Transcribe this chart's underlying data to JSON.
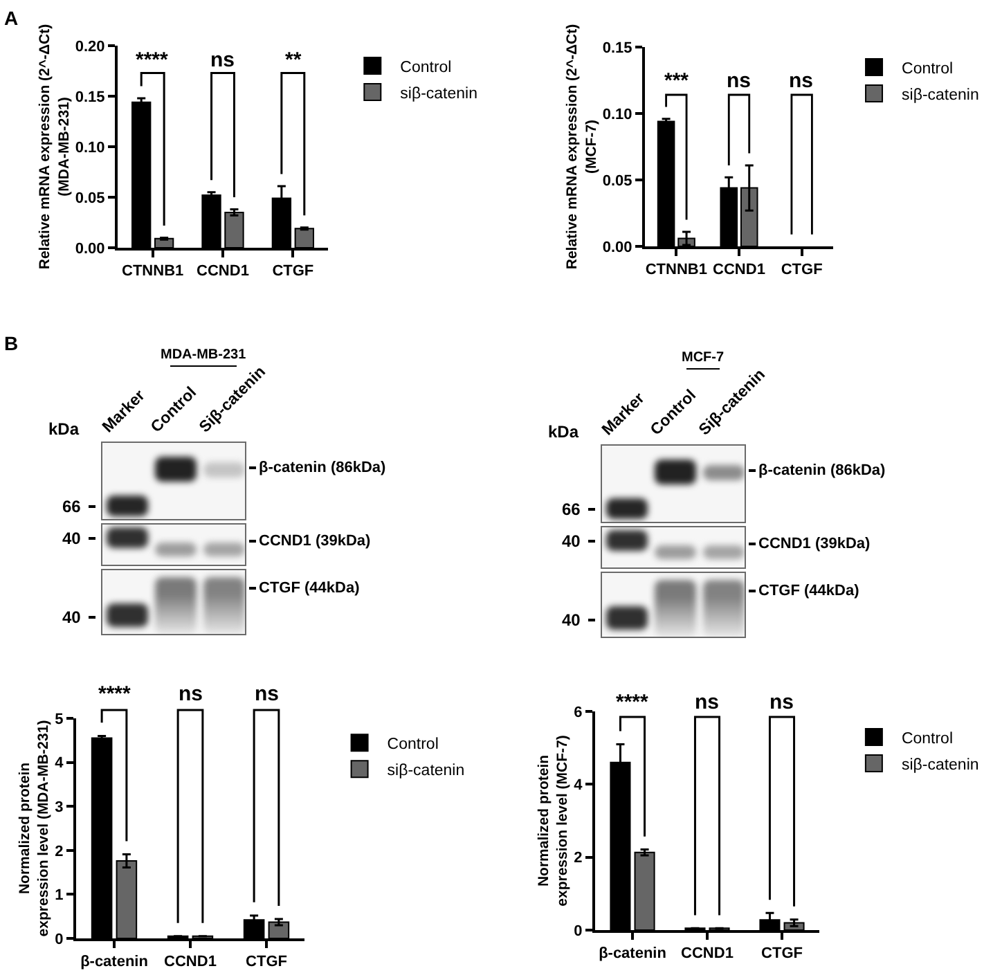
{
  "chart_data": [
    {
      "type": "bar",
      "ylabel": "Relative mRNA expression (2^-ΔCt)\n(MDA-MB-231)",
      "categories": [
        "CTNNB1",
        "CCND1",
        "CTGF"
      ],
      "series": [
        {
          "name": "Control",
          "color": "#000000",
          "values": [
            0.144,
            0.052,
            0.049
          ],
          "errors": [
            0.004,
            0.003,
            0.012
          ]
        },
        {
          "name": "siβ-catenin",
          "color": "#666666",
          "values": [
            0.009,
            0.035,
            0.019
          ],
          "errors": [
            0.001,
            0.003,
            0.001
          ]
        }
      ],
      "ylim": [
        0,
        0.2
      ],
      "yticks": [
        {
          "value": 0,
          "label": "0.00"
        },
        0.05,
        {
          "value": 0.1,
          "label": "0.10"
        },
        0.15,
        {
          "value": 0.2,
          "label": "0.20"
        }
      ],
      "legend": "top right",
      "annotations": [
        "A",
        "****",
        "ns",
        "**"
      ]
    },
    {
      "type": "bar",
      "ylabel": "Relative mRNA expression (2^-ΔCt)\n(MCF-7)",
      "categories": [
        "CTNNB1",
        "CCND1",
        "CTGF"
      ],
      "series": [
        {
          "name": "Control",
          "color": "#000000",
          "values": [
            0.094,
            0.044,
            null
          ],
          "errors": [
            0.002,
            0.008,
            null
          ]
        },
        {
          "name": "siβ-catenin",
          "color": "#666666",
          "values": [
            0.006,
            0.044,
            null
          ],
          "errors": [
            0.005,
            0.017,
            null
          ]
        }
      ],
      "ylim": [
        0,
        0.15
      ],
      "yticks": [
        {
          "value": 0,
          "label": "0.00"
        },
        0.05,
        {
          "value": 0.1,
          "label": "0.10"
        },
        0.15
      ],
      "legend": "top right",
      "annotations": [
        "***",
        "ns",
        "ns"
      ]
    },
    {
      "type": "other",
      "title": "MDA-MB-231",
      "ylabel": "kDa",
      "categories": [
        "Marker",
        "Control",
        "Siβ-catenin"
      ],
      "y_categories": [
        "β-catenin (86kDa)",
        "CCND1 (39kDa)",
        "CTGF (44kDa)"
      ],
      "annotations": [
        "B",
        "66",
        "40",
        "40"
      ]
    },
    {
      "type": "other",
      "title": "MCF-7",
      "ylabel": "kDa",
      "categories": [
        "Marker",
        "Control",
        "Siβ-catenin"
      ],
      "y_categories": [
        "β-catenin (86kDa)",
        "CCND1 (39kDa)",
        "CTGF (44kDa)"
      ],
      "annotations": [
        "66",
        "40",
        "40"
      ]
    },
    {
      "type": "bar",
      "ylabel": "Normalized protein\nexpression level (MDA-MB-231)",
      "categories": [
        "β-catenin",
        "CCND1",
        "CTGF"
      ],
      "series": [
        {
          "name": "Control",
          "color": "#000000",
          "values": [
            4.55,
            0.05,
            0.42
          ],
          "errors": [
            0.05,
            null,
            0.1
          ]
        },
        {
          "name": "siβ-catenin",
          "color": "#666666",
          "values": [
            1.76,
            0.05,
            0.37
          ],
          "errors": [
            0.15,
            null,
            0.07
          ]
        }
      ],
      "ylim": [
        0,
        5
      ],
      "yticks": [
        0,
        1,
        2,
        3,
        4,
        5
      ],
      "legend": "top right",
      "annotations": [
        "****",
        "ns",
        "ns"
      ]
    },
    {
      "type": "bar",
      "ylabel": "Normalized protein\nexpression level (MCF-7)",
      "categories": [
        "β-catenin",
        "CCND1",
        "CTGF"
      ],
      "series": [
        {
          "name": "Control",
          "color": "#000000",
          "values": [
            4.6,
            0.05,
            0.28
          ],
          "errors": [
            0.5,
            null,
            0.19
          ]
        },
        {
          "name": "siβ-catenin",
          "color": "#666666",
          "values": [
            2.13,
            0.05,
            0.2
          ],
          "errors": [
            0.08,
            null,
            0.09
          ]
        }
      ],
      "ylim": [
        0,
        6
      ],
      "yticks": [
        0,
        2,
        4,
        6
      ],
      "legend": "top right",
      "annotations": [
        "****",
        "ns",
        "ns"
      ]
    }
  ]
}
